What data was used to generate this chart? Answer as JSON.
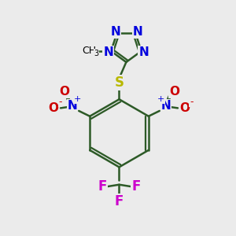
{
  "bg_color": "#ebebeb",
  "bond_color": "#2d5a27",
  "N_color": "#0000dd",
  "O_color": "#cc0000",
  "S_color": "#b8b800",
  "F_color": "#cc00cc",
  "C_color": "#000000",
  "bond_width": 1.8,
  "figsize": [
    3.0,
    3.0
  ],
  "dpi": 100,
  "xlim": [
    0,
    10
  ],
  "ylim": [
    0,
    10
  ]
}
